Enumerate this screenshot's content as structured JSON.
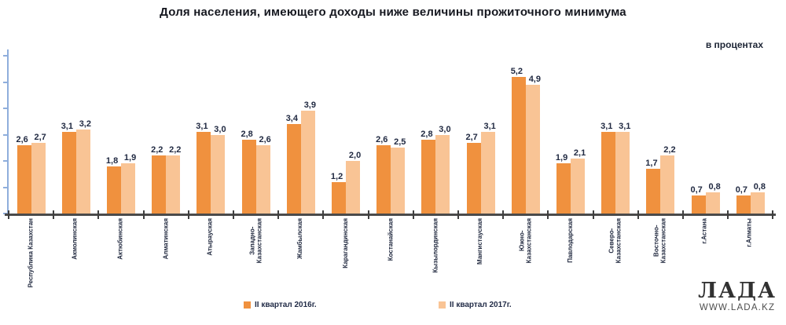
{
  "title": "Доля населения, имеющего доходы ниже величины  прожиточного  минимума",
  "units_note": "в процентах",
  "chart_data": {
    "type": "bar",
    "categories": [
      "Республика Казахстан",
      "Акмолинская",
      "Актюбинская",
      "Алматинская",
      "Атырауская",
      "Западно-\nКазахстанская",
      "Жамбылская",
      "Карагандинская",
      "Костанайская",
      "Кызылординская",
      "Мангистауская",
      "Южно-\nКазахстанская",
      "Павлодарская",
      "Северо-\nКазахстанская",
      "Восточно-\nКазахстанская",
      "г.Астана",
      "г.Алматы"
    ],
    "series": [
      {
        "name": "II квартал 2016г.",
        "color": "#F0913E",
        "values": [
          2.6,
          3.1,
          1.8,
          2.2,
          3.1,
          2.8,
          3.4,
          1.2,
          2.6,
          2.8,
          2.7,
          5.2,
          1.9,
          3.1,
          1.7,
          0.7,
          0.7
        ]
      },
      {
        "name": "II квартал 2017г.",
        "color": "#F9C495",
        "values": [
          2.7,
          3.2,
          1.9,
          2.2,
          3.0,
          2.6,
          3.9,
          2.0,
          2.5,
          3.0,
          3.1,
          4.9,
          2.1,
          3.1,
          2.2,
          0.8,
          0.8
        ]
      }
    ],
    "ylim": [
      0,
      6
    ],
    "y_tick_step": 1,
    "grid": false,
    "legend_position": "bottom",
    "decimal_separator": ",",
    "value_labels_shown": true,
    "axis_tick_labels_shown": false
  },
  "branding": {
    "logo_text": "ЛАДА",
    "website": "WWW.LADA.KZ"
  }
}
